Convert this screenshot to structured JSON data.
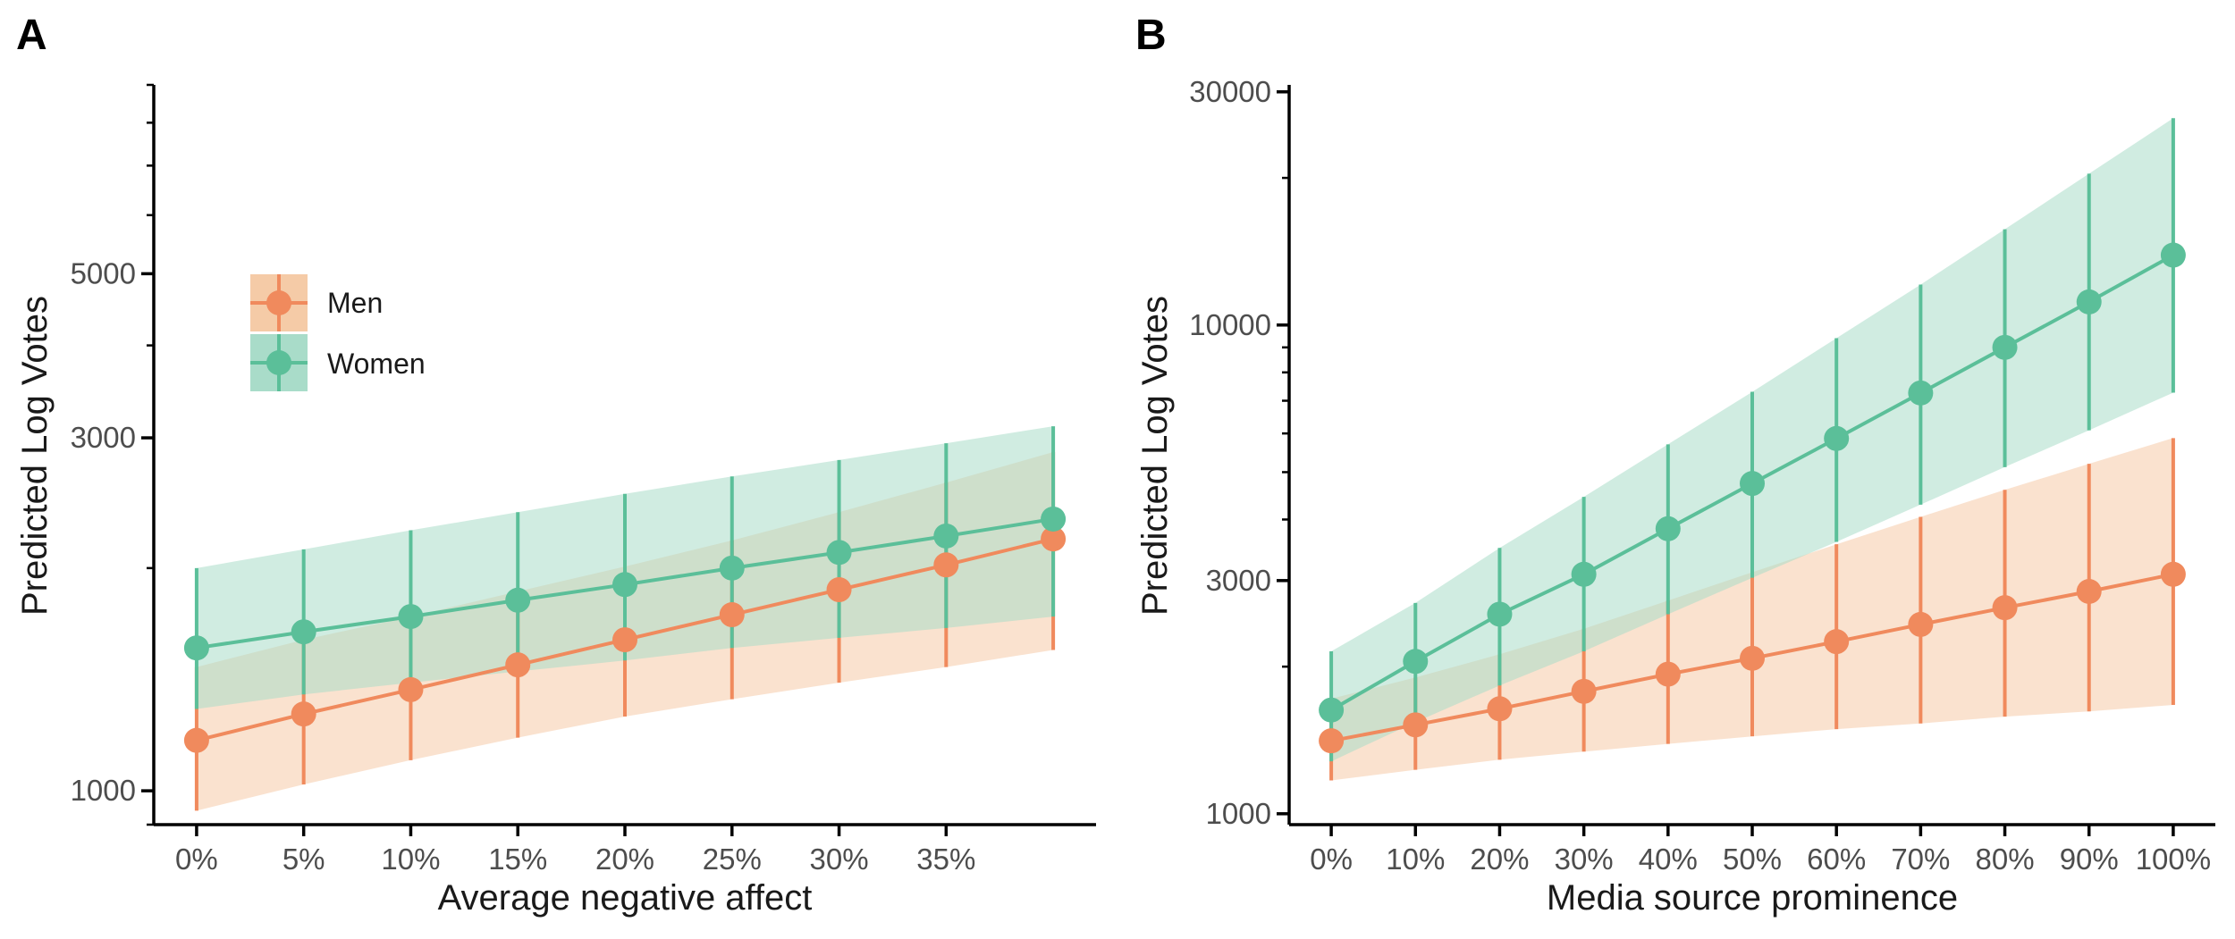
{
  "colors": {
    "men": "#F08A5D",
    "men_band": "#F5CBA7",
    "women": "#5BBF99",
    "women_band": "#A9DCC9",
    "axis": "#000000"
  },
  "chart_data": [
    {
      "panel": "A",
      "type": "line",
      "xlabel": "Average negative affect",
      "ylabel": "Predicted Log Votes",
      "y_scale": "log",
      "ylim": [
        900,
        9000
      ],
      "y_ticks": [
        1000,
        3000,
        5000
      ],
      "y_tick_labels": [
        "1000",
        "3000",
        "5000"
      ],
      "x_ticks": [
        0,
        5,
        10,
        15,
        20,
        25,
        30,
        35
      ],
      "x_tick_labels": [
        "0%",
        "5%",
        "10%",
        "15%",
        "20%",
        "25%",
        "30%",
        "35%"
      ],
      "xlim": [
        -2,
        42
      ],
      "legend": {
        "position": "upper-left",
        "entries": [
          "Men",
          "Women"
        ]
      },
      "series": [
        {
          "name": "Men",
          "x": [
            0,
            5,
            10,
            15,
            20,
            25,
            30,
            35,
            40
          ],
          "values": [
            1170,
            1270,
            1370,
            1480,
            1600,
            1730,
            1870,
            2020,
            2190
          ],
          "lower": [
            940,
            1020,
            1100,
            1180,
            1260,
            1330,
            1400,
            1470,
            1550
          ],
          "upper": [
            1470,
            1600,
            1720,
            1860,
            2010,
            2180,
            2380,
            2610,
            2870
          ]
        },
        {
          "name": "Women",
          "x": [
            0,
            5,
            10,
            15,
            20,
            25,
            30,
            35,
            40
          ],
          "values": [
            1560,
            1640,
            1720,
            1810,
            1900,
            2000,
            2100,
            2210,
            2330
          ],
          "lower": [
            1290,
            1350,
            1400,
            1450,
            1500,
            1560,
            1610,
            1660,
            1720
          ],
          "upper": [
            2000,
            2120,
            2250,
            2380,
            2520,
            2660,
            2800,
            2950,
            3110
          ]
        }
      ]
    },
    {
      "panel": "B",
      "type": "line",
      "xlabel": "Media source prominence",
      "ylabel": "Predicted Log Votes",
      "y_scale": "log",
      "ylim": [
        950,
        31000
      ],
      "y_ticks": [
        1000,
        3000,
        10000,
        30000
      ],
      "y_tick_labels": [
        "1000",
        "3000",
        "10000",
        "30000"
      ],
      "x_ticks": [
        0,
        10,
        20,
        30,
        40,
        50,
        60,
        70,
        80,
        90,
        100
      ],
      "x_tick_labels": [
        "0%",
        "10%",
        "20%",
        "30%",
        "40%",
        "50%",
        "60%",
        "70%",
        "80%",
        "90%",
        "100%"
      ],
      "xlim": [
        -5,
        105
      ],
      "series": [
        {
          "name": "Men",
          "x": [
            0,
            10,
            20,
            30,
            40,
            50,
            60,
            70,
            80,
            90,
            100
          ],
          "values": [
            1410,
            1520,
            1640,
            1780,
            1930,
            2080,
            2250,
            2440,
            2640,
            2850,
            3090
          ],
          "lower": [
            1170,
            1230,
            1290,
            1340,
            1390,
            1440,
            1490,
            1530,
            1580,
            1620,
            1670
          ],
          "upper": [
            1720,
            1900,
            2120,
            2390,
            2730,
            3120,
            3560,
            4050,
            4600,
            5200,
            5870
          ]
        },
        {
          "name": "Women",
          "x": [
            0,
            10,
            20,
            30,
            40,
            50,
            60,
            70,
            80,
            90,
            100
          ],
          "values": [
            1630,
            2050,
            2560,
            3090,
            3830,
            4740,
            5860,
            7260,
            9000,
            11150,
            13900
          ],
          "lower": [
            1280,
            1540,
            1830,
            2150,
            2560,
            3040,
            3600,
            4290,
            5120,
            6090,
            7270
          ],
          "upper": [
            2150,
            2700,
            3500,
            4450,
            5700,
            7300,
            9400,
            12100,
            15700,
            20400,
            26500
          ]
        }
      ]
    }
  ]
}
